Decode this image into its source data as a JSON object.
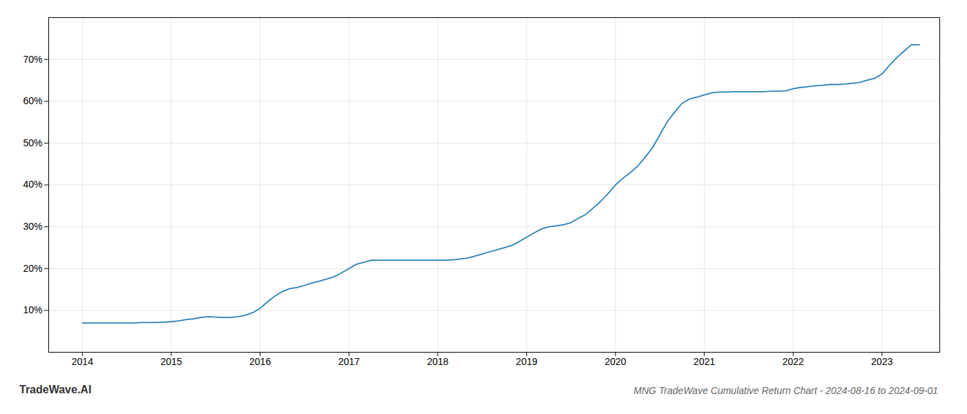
{
  "chart_data": {
    "type": "line",
    "title": "MNG TradeWave Cumulative Return Chart - 2024-08-16 to 2024-09-01",
    "annotations": [
      "TradeWave.AI"
    ],
    "color": "#2980b9",
    "grid": true,
    "x": [
      2014.0,
      2014.08,
      2014.17,
      2014.25,
      2014.33,
      2014.42,
      2014.5,
      2014.58,
      2014.67,
      2014.75,
      2014.83,
      2014.92,
      2015.0,
      2015.08,
      2015.17,
      2015.25,
      2015.33,
      2015.42,
      2015.5,
      2015.58,
      2015.67,
      2015.75,
      2015.83,
      2015.92,
      2016.0,
      2016.08,
      2016.17,
      2016.25,
      2016.33,
      2016.42,
      2016.5,
      2016.58,
      2016.67,
      2016.75,
      2016.83,
      2016.92,
      2017.0,
      2017.08,
      2017.17,
      2017.25,
      2017.33,
      2017.42,
      2017.5,
      2017.58,
      2017.67,
      2017.75,
      2017.83,
      2017.92,
      2018.0,
      2018.08,
      2018.17,
      2018.25,
      2018.33,
      2018.42,
      2018.5,
      2018.58,
      2018.67,
      2018.75,
      2018.83,
      2018.92,
      2019.0,
      2019.08,
      2019.17,
      2019.25,
      2019.33,
      2019.42,
      2019.5,
      2019.58,
      2019.67,
      2019.75,
      2019.83,
      2019.92,
      2020.0,
      2020.08,
      2020.17,
      2020.25,
      2020.33,
      2020.42,
      2020.5,
      2020.58,
      2020.67,
      2020.75,
      2020.83,
      2020.92,
      2021.0,
      2021.08,
      2021.17,
      2021.25,
      2021.33,
      2021.42,
      2021.5,
      2021.58,
      2021.67,
      2021.75,
      2021.83,
      2021.92,
      2022.0,
      2022.08,
      2022.17,
      2022.25,
      2022.33,
      2022.42,
      2022.5,
      2022.58,
      2022.67,
      2022.75,
      2022.83,
      2022.92,
      2023.0,
      2023.08,
      2023.17,
      2023.25,
      2023.33,
      2023.42
    ],
    "values": [
      7.0,
      7.0,
      7.0,
      7.0,
      7.0,
      7.0,
      7.0,
      7.0,
      7.1,
      7.1,
      7.1,
      7.2,
      7.3,
      7.5,
      7.8,
      8.0,
      8.3,
      8.5,
      8.4,
      8.3,
      8.3,
      8.5,
      8.8,
      9.5,
      10.5,
      12.0,
      13.5,
      14.5,
      15.2,
      15.5,
      16.0,
      16.5,
      17.0,
      17.5,
      18.0,
      19.0,
      20.0,
      21.0,
      21.5,
      22.0,
      22.0,
      22.0,
      22.0,
      22.0,
      22.0,
      22.0,
      22.0,
      22.0,
      22.0,
      22.0,
      22.1,
      22.3,
      22.5,
      23.0,
      23.5,
      24.0,
      24.5,
      25.0,
      25.5,
      26.5,
      27.5,
      28.5,
      29.5,
      30.0,
      30.2,
      30.5,
      31.0,
      32.0,
      33.0,
      34.5,
      36.0,
      38.0,
      40.0,
      41.5,
      43.0,
      44.5,
      46.5,
      49.0,
      52.0,
      55.0,
      57.5,
      59.5,
      60.5,
      61.0,
      61.5,
      62.0,
      62.2,
      62.2,
      62.3,
      62.3,
      62.3,
      62.3,
      62.3,
      62.4,
      62.4,
      62.5,
      63.0,
      63.3,
      63.5,
      63.7,
      63.8,
      64.0,
      64.0,
      64.1,
      64.3,
      64.5,
      65.0,
      65.5,
      66.5,
      68.5,
      70.5,
      72.0,
      73.5,
      73.5
    ],
    "xlim": [
      2013.62,
      2023.65
    ],
    "xticks": [
      2014,
      2015,
      2016,
      2017,
      2018,
      2019,
      2020,
      2021,
      2022,
      2023
    ],
    "ylim": [
      0,
      80
    ],
    "yticks": [
      {
        "value": 10,
        "label": "10%"
      },
      {
        "value": 20,
        "label": "20%"
      },
      {
        "value": 30,
        "label": "30%"
      },
      {
        "value": 40,
        "label": "40%"
      },
      {
        "value": 50,
        "label": "50%"
      },
      {
        "value": 60,
        "label": "60%"
      },
      {
        "value": 70,
        "label": "70%"
      }
    ]
  }
}
